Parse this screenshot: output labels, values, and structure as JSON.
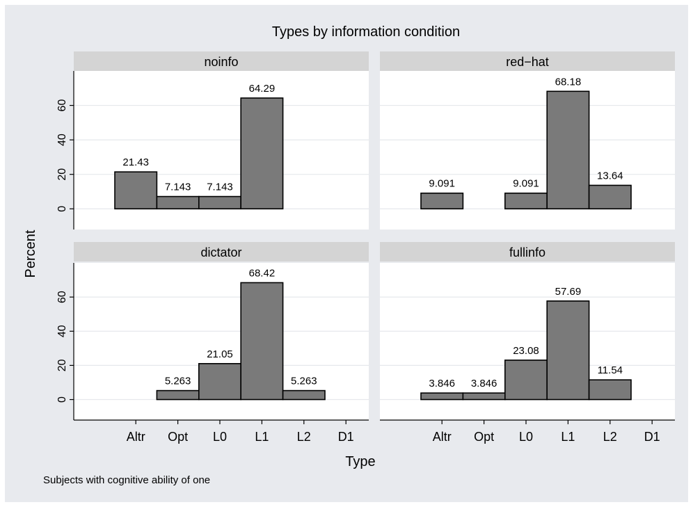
{
  "chart_data": {
    "type": "bar",
    "title": "Types by information condition",
    "xlabel": "Type",
    "ylabel": "Percent",
    "note": "Subjects with cognitive ability of one",
    "categories": [
      "Altr",
      "Opt",
      "L0",
      "L1",
      "L2",
      "D1"
    ],
    "ylim": [
      -12,
      80
    ],
    "yticks": [
      0,
      20,
      40,
      60
    ],
    "grid": true,
    "colors": {
      "bar_fill": "#7a7a7a",
      "bar_stroke": "#000000",
      "panel_header": "#d4d4d4",
      "background": "#e8eaee",
      "plot_bg": "#ffffff",
      "grid": "#e6e8ec"
    },
    "panels": [
      {
        "name": "noinfo",
        "values": [
          21.43,
          7.143,
          7.143,
          64.29,
          null,
          null
        ],
        "labels": [
          "21.43",
          "7.143",
          "7.143",
          "64.29",
          null,
          null
        ]
      },
      {
        "name": "red−hat",
        "values": [
          9.091,
          null,
          9.091,
          68.18,
          13.64,
          null
        ],
        "labels": [
          "9.091",
          null,
          "9.091",
          "68.18",
          "13.64",
          null
        ]
      },
      {
        "name": "dictator",
        "values": [
          null,
          5.263,
          21.05,
          68.42,
          5.263,
          null
        ],
        "labels": [
          null,
          "5.263",
          "21.05",
          "68.42",
          "5.263",
          null
        ]
      },
      {
        "name": "fullinfo",
        "values": [
          3.846,
          3.846,
          23.08,
          57.69,
          11.54,
          null
        ],
        "labels": [
          "3.846",
          "3.846",
          "23.08",
          "57.69",
          "11.54",
          null
        ]
      }
    ]
  }
}
